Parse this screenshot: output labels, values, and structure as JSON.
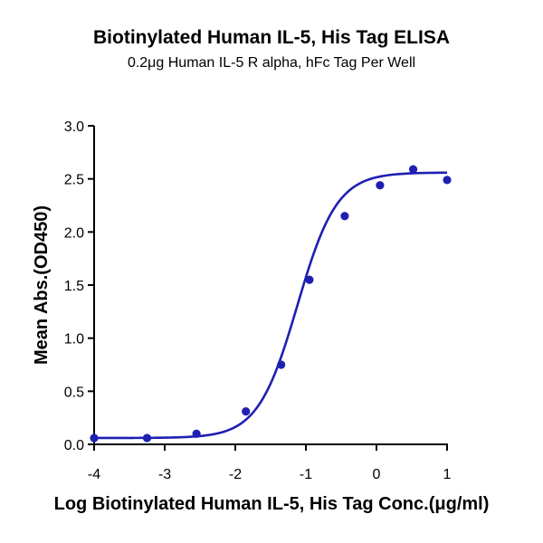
{
  "chart_data": {
    "type": "scatter",
    "title": "Biotinylated Human IL-5, His Tag ELISA",
    "subtitle": "0.2μg Human IL-5 R alpha, hFc Tag Per Well",
    "xlabel": "Log Biotinylated Human IL-5, His Tag Conc.(μg/ml)",
    "ylabel": "Mean Abs.(OD450)",
    "xlim": [
      -4,
      1
    ],
    "ylim": [
      0,
      3.0
    ],
    "xticks": [
      -4,
      -3,
      -2,
      -1,
      0,
      1
    ],
    "yticks": [
      0.0,
      0.5,
      1.0,
      1.5,
      2.0,
      2.5,
      3.0
    ],
    "ytick_labels": [
      "0.0",
      "0.5",
      "1.0",
      "1.5",
      "2.0",
      "2.5",
      "3.0"
    ],
    "grid": false,
    "legend": "none",
    "color": "#1f1fb4",
    "series": [
      {
        "x": [
          -4.0,
          -3.25,
          -2.55,
          -1.85,
          -1.35,
          -0.95,
          -0.45,
          0.05,
          0.52,
          1.0
        ],
        "y": [
          0.06,
          0.06,
          0.1,
          0.31,
          0.75,
          1.55,
          2.15,
          2.44,
          2.59,
          2.49
        ]
      }
    ],
    "fit": {
      "model": "4PL",
      "bottom": 0.06,
      "top": 2.56,
      "log_ec50": -1.12,
      "hill": 1.55
    }
  }
}
